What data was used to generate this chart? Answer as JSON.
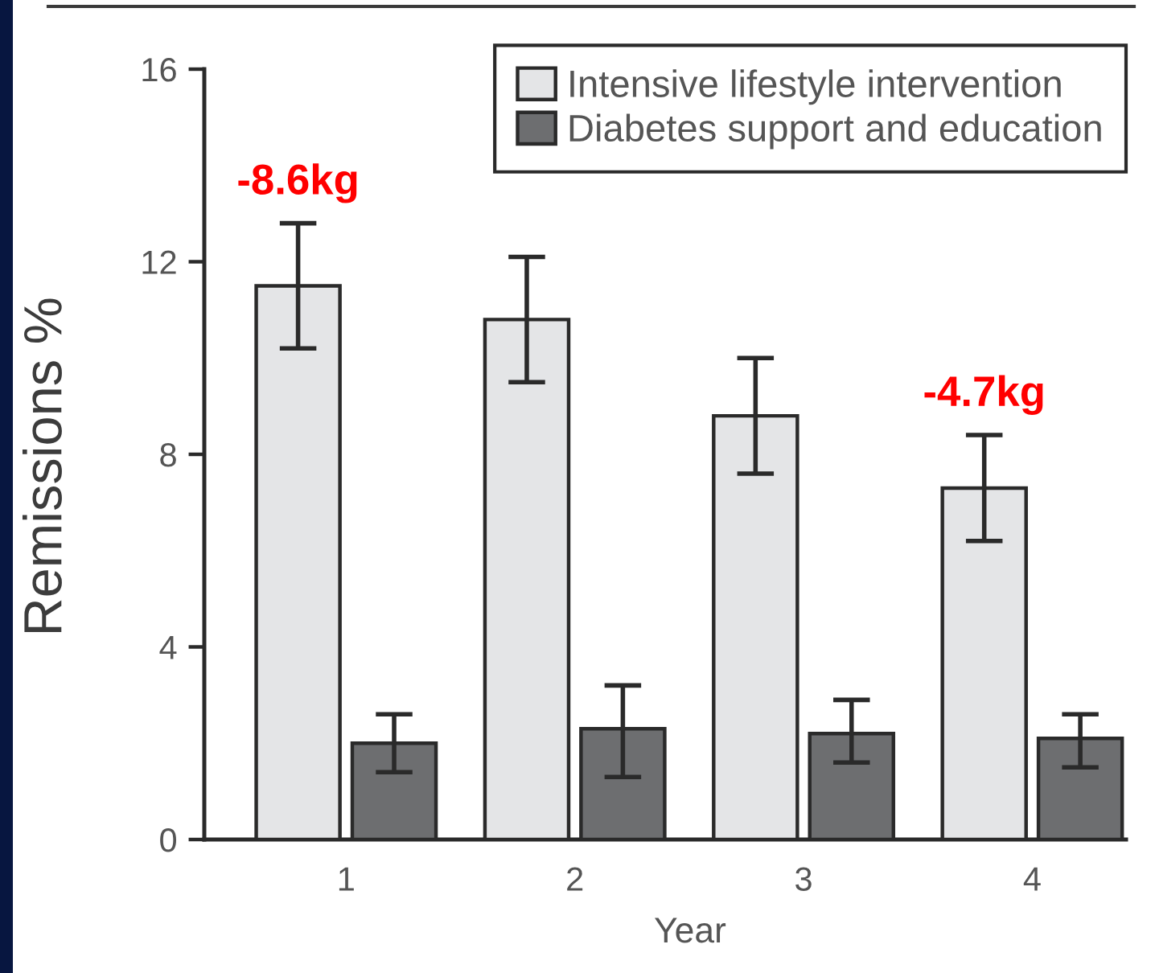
{
  "chart_data": {
    "type": "bar",
    "categories": [
      "1",
      "2",
      "3",
      "4"
    ],
    "xlabel": "Year",
    "ylabel": "Remissions %",
    "ylim": [
      0,
      16
    ],
    "yticks": [
      0,
      4,
      8,
      12,
      16
    ],
    "series": [
      {
        "name": "Intensive lifestyle intervention",
        "color": "#e4e5e7",
        "values": [
          11.5,
          10.8,
          8.8,
          7.3
        ],
        "errors": [
          [
            10.2,
            12.8
          ],
          [
            9.5,
            12.1
          ],
          [
            7.6,
            10.0
          ],
          [
            6.2,
            8.4
          ]
        ]
      },
      {
        "name": "Diabetes support and education",
        "color": "#6d6e70",
        "values": [
          2.0,
          2.3,
          2.2,
          2.1
        ],
        "errors": [
          [
            1.4,
            2.6
          ],
          [
            1.3,
            3.2
          ],
          [
            1.6,
            2.9
          ],
          [
            1.5,
            2.6
          ]
        ]
      }
    ],
    "annotations": [
      {
        "text": "-8.6kg",
        "x": "1",
        "y": 11.5
      },
      {
        "text": "-4.7kg",
        "x": "4",
        "y": 7.3
      }
    ],
    "legend": "top right",
    "grid": false
  }
}
